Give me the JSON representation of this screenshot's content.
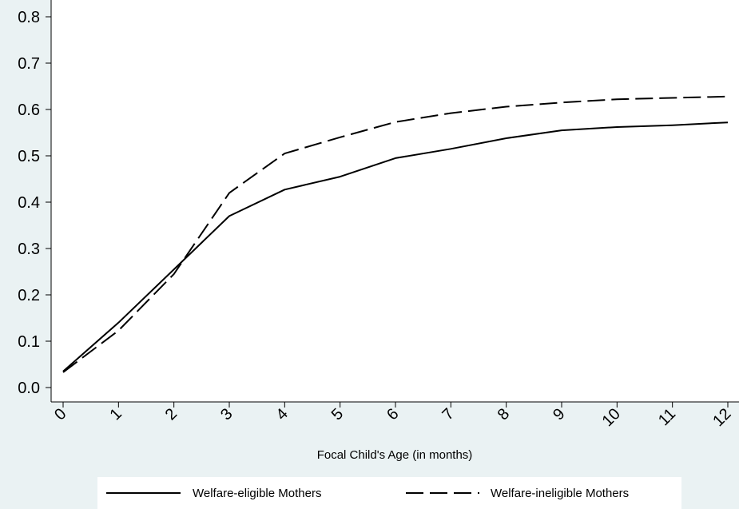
{
  "chart_data": {
    "type": "line",
    "title": "",
    "xlabel": "Focal Child's Age (in months)",
    "ylabel": "",
    "x": [
      0,
      1,
      2,
      3,
      4,
      5,
      6,
      7,
      8,
      9,
      10,
      11,
      12
    ],
    "x_tick_labels": [
      "0",
      "1",
      "2",
      "3",
      "4",
      "5",
      "6",
      "7",
      "8",
      "9",
      "10",
      "11",
      "12"
    ],
    "y_ticks": [
      0.0,
      0.1,
      0.2,
      0.3,
      0.4,
      0.5,
      0.6,
      0.7,
      0.8
    ],
    "y_tick_labels": [
      "0.0",
      "0.1",
      "0.2",
      "0.3",
      "0.4",
      "0.5",
      "0.6",
      "0.7",
      "0.8"
    ],
    "xlim": [
      0,
      12
    ],
    "ylim": [
      0.0,
      0.8
    ],
    "grid": false,
    "legend_position": "bottom",
    "series": [
      {
        "name": "Welfare-eligible Mothers",
        "style": "solid",
        "color": "#000000",
        "values": [
          0.035,
          0.14,
          0.255,
          0.37,
          0.427,
          0.455,
          0.495,
          0.515,
          0.538,
          0.555,
          0.562,
          0.566,
          0.572
        ]
      },
      {
        "name": "Welfare-ineligible Mothers",
        "style": "dashed",
        "color": "#000000",
        "values": [
          0.033,
          0.123,
          0.245,
          0.42,
          0.505,
          0.54,
          0.573,
          0.592,
          0.606,
          0.615,
          0.622,
          0.625,
          0.628
        ]
      }
    ]
  }
}
